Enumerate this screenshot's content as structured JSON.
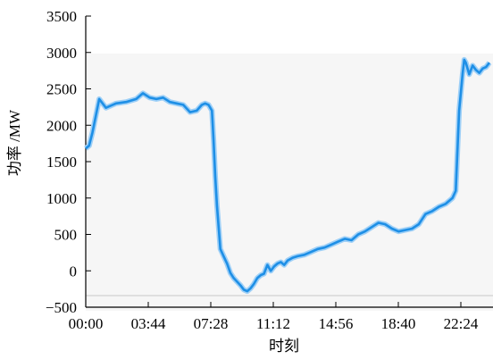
{
  "chart_data": {
    "type": "line",
    "title": "",
    "xlabel": "时刻",
    "ylabel": "功率 /MW",
    "x_ticks": [
      "00:00",
      "03:44",
      "07:28",
      "11:12",
      "14:56",
      "18:40",
      "22:24"
    ],
    "y_ticks": [
      "3500",
      "3000",
      "2500",
      "2000",
      "1500",
      "1000",
      "500",
      "0",
      "−500"
    ],
    "ylim": [
      -500,
      3500
    ],
    "grid": false,
    "legend": "none",
    "line_color": "#1e8fe6",
    "x_unit": "hours since 00:00",
    "series": [
      {
        "name": "",
        "x": [
          0.0,
          0.2,
          0.4,
          0.8,
          1.2,
          1.8,
          2.4,
          3.0,
          3.4,
          3.8,
          4.2,
          4.6,
          5.0,
          5.4,
          5.8,
          6.2,
          6.6,
          6.9,
          7.1,
          7.3,
          7.5,
          7.6,
          7.7,
          7.8,
          7.9,
          8.0,
          8.2,
          8.4,
          8.6,
          8.8,
          9.0,
          9.2,
          9.4,
          9.6,
          9.8,
          10.0,
          10.2,
          10.4,
          10.6,
          10.8,
          11.0,
          11.2,
          11.4,
          11.6,
          11.8,
          12.0,
          12.3,
          12.6,
          13.0,
          13.4,
          13.8,
          14.2,
          14.6,
          15.0,
          15.4,
          15.8,
          16.2,
          16.6,
          17.0,
          17.4,
          17.8,
          18.2,
          18.6,
          19.0,
          19.4,
          19.8,
          20.2,
          20.6,
          21.0,
          21.4,
          21.8,
          22.0,
          22.2,
          22.4,
          22.5,
          22.6,
          22.8,
          23.0,
          23.2,
          23.4,
          23.6,
          23.8,
          24.0
        ],
        "y": [
          1680,
          1720,
          1900,
          2360,
          2240,
          2300,
          2320,
          2360,
          2440,
          2380,
          2360,
          2380,
          2320,
          2300,
          2280,
          2180,
          2200,
          2280,
          2300,
          2280,
          2200,
          1800,
          1300,
          900,
          600,
          300,
          200,
          100,
          -30,
          -100,
          -150,
          -200,
          -260,
          -280,
          -240,
          -180,
          -100,
          -60,
          -40,
          80,
          0,
          60,
          100,
          120,
          80,
          140,
          180,
          200,
          220,
          260,
          300,
          320,
          360,
          400,
          440,
          420,
          500,
          540,
          600,
          660,
          640,
          580,
          540,
          560,
          580,
          640,
          780,
          820,
          880,
          920,
          1000,
          1100,
          2200,
          2700,
          2900,
          2860,
          2700,
          2820,
          2760,
          2720,
          2780,
          2800,
          2860
        ]
      }
    ]
  }
}
